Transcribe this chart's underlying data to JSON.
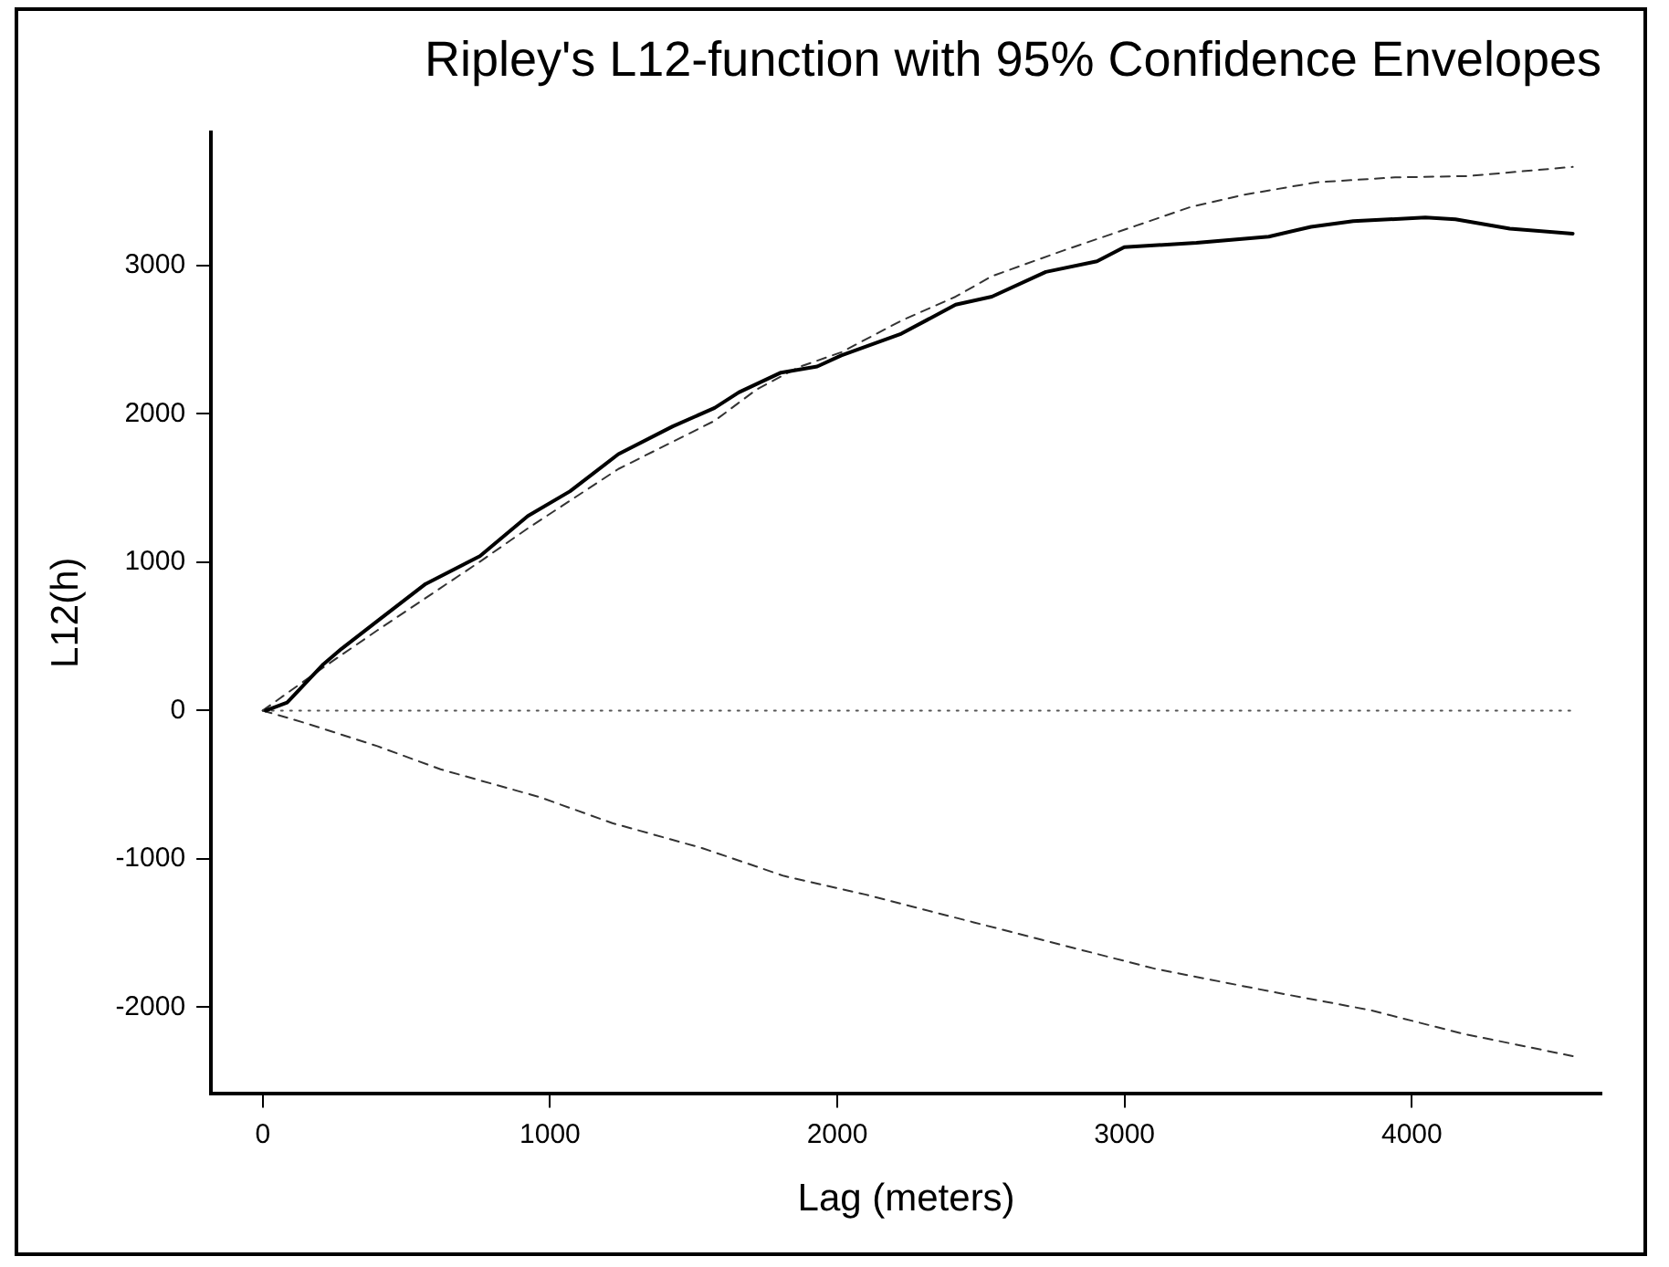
{
  "chart_data": {
    "type": "line",
    "title": "Ripley's L12-function with 95% Confidence Envelopes",
    "xlabel": "Lag (meters)",
    "ylabel": "L12(h)",
    "marker": "none",
    "xlim": [
      -180,
      4660
    ],
    "ylim": [
      -2580,
      3900
    ],
    "xticks": [
      0,
      1000,
      2000,
      3000,
      4000
    ],
    "yticks": [
      -2000,
      -1000,
      0,
      1000,
      2000,
      3000
    ],
    "series": [
      {
        "color": "#000000",
        "line_style": "solid",
        "x": [
          11,
          85,
          211,
          274,
          399,
          567,
          756,
          923,
          1070,
          1238,
          1427,
          1573,
          1657,
          1804,
          1930,
          2014,
          2223,
          2412,
          2538,
          2726,
          2904,
          2999,
          3250,
          3502,
          3649,
          3796,
          4047,
          4152,
          4341,
          4560
        ],
        "values": [
          0,
          54,
          312,
          416,
          604,
          854,
          1041,
          1312,
          1479,
          1729,
          1916,
          2041,
          2145,
          2279,
          2320,
          2395,
          2541,
          2737,
          2791,
          2958,
          3029,
          3125,
          3154,
          3196,
          3262,
          3300,
          3325,
          3312,
          3250,
          3216
        ]
      },
      {
        "color": "#333333",
        "line_style": "dashed",
        "x": [
          0,
          211,
          399,
          756,
          923,
          1238,
          1573,
          1720,
          1866,
          2014,
          2223,
          2412,
          2538,
          2790,
          3041,
          3229,
          3418,
          3669,
          3942,
          4194,
          4560
        ],
        "values": [
          0,
          291,
          541,
          1004,
          1229,
          1629,
          1954,
          2166,
          2316,
          2416,
          2629,
          2791,
          2929,
          3104,
          3270,
          3395,
          3479,
          3562,
          3595,
          3604,
          3666
        ]
      },
      {
        "color": "#333333",
        "line_style": "dashed",
        "x": [
          0,
          148,
          399,
          619,
          965,
          1217,
          1531,
          1814,
          2097,
          2475,
          2789,
          3104,
          3513,
          3858,
          4173,
          4560
        ],
        "values": [
          0,
          -84,
          -240,
          -396,
          -584,
          -759,
          -928,
          -1115,
          -1240,
          -1428,
          -1584,
          -1740,
          -1896,
          -2021,
          -2177,
          -2330
        ]
      },
      {
        "color": "#555555",
        "line_style": "dotted",
        "x": [
          0,
          4560
        ],
        "values": [
          0,
          0
        ]
      }
    ]
  }
}
